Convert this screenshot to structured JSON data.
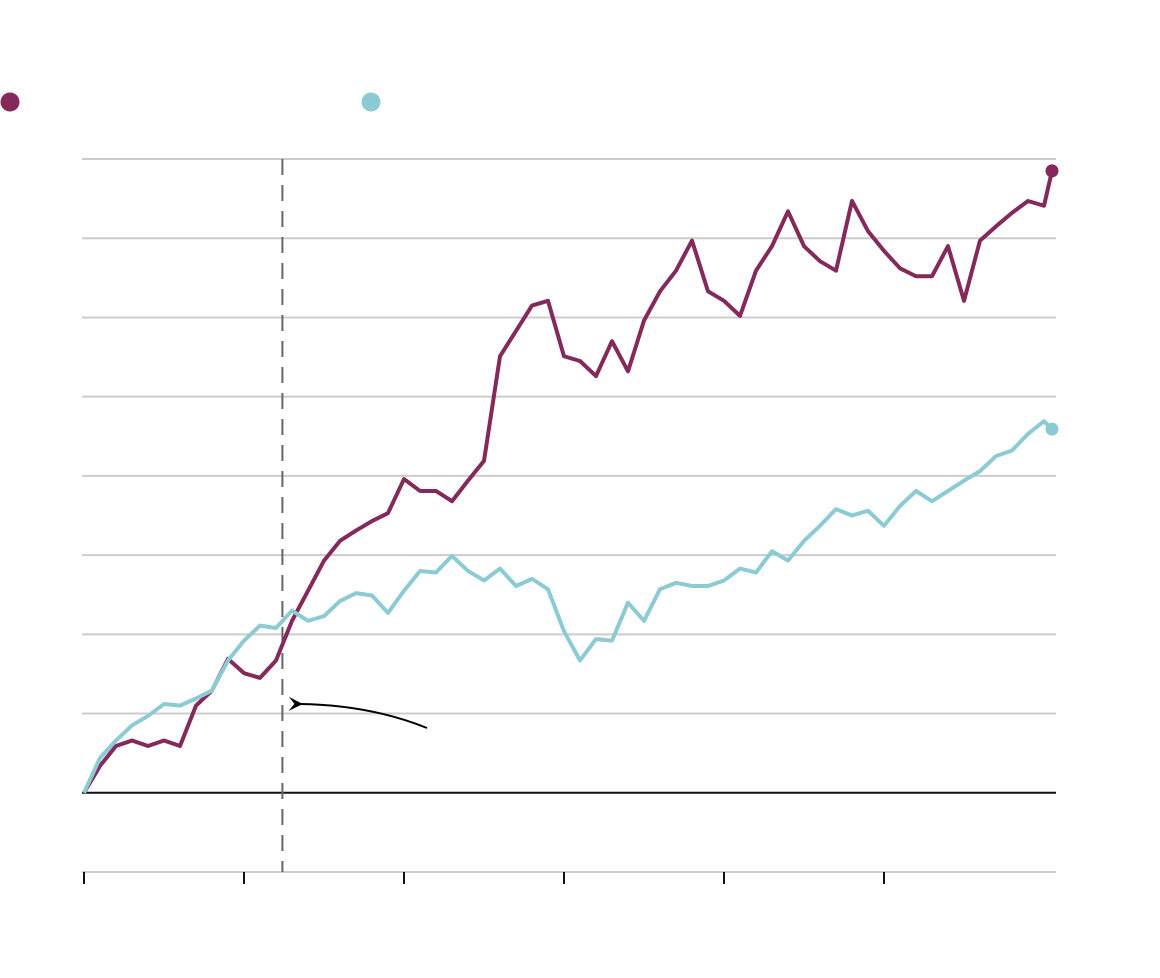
{
  "chart_data": {
    "type": "line",
    "x": [
      0,
      0.1,
      0.2,
      0.3,
      0.4,
      0.5,
      0.6,
      0.7,
      0.8,
      0.9,
      1.0,
      1.1,
      1.2,
      1.3,
      1.4,
      1.5,
      1.6,
      1.7,
      1.8,
      1.9,
      2.0,
      2.1,
      2.2,
      2.3,
      2.4,
      2.5,
      2.6,
      2.7,
      2.8,
      2.9,
      3.0,
      3.1,
      3.2,
      3.3,
      3.4,
      3.5,
      3.6,
      3.7,
      3.8,
      3.9,
      4.0,
      4.1,
      4.2,
      4.3,
      4.4,
      4.5,
      4.6,
      4.7,
      4.8,
      4.9,
      5.0,
      5.1,
      5.2,
      5.3,
      5.4,
      5.5,
      5.6,
      5.7,
      5.8,
      5.9,
      6.0,
      6.05
    ],
    "series": [
      {
        "color": "#84295a",
        "values": [
          0,
          0.34,
          0.59,
          0.66,
          0.59,
          0.66,
          0.59,
          1.1,
          1.29,
          1.69,
          1.51,
          1.45,
          1.67,
          2.17,
          2.55,
          2.93,
          3.18,
          3.31,
          3.43,
          3.53,
          3.96,
          3.81,
          3.81,
          3.68,
          3.94,
          4.19,
          5.51,
          5.83,
          6.15,
          6.21,
          5.51,
          5.45,
          5.26,
          5.7,
          5.32,
          5.96,
          6.33,
          6.59,
          6.97,
          6.33,
          6.21,
          6.02,
          6.59,
          6.9,
          7.34,
          6.9,
          6.71,
          6.59,
          7.47,
          7.09,
          6.84,
          6.62,
          6.52,
          6.52,
          6.9,
          6.21,
          6.97,
          7.15,
          7.32,
          7.47,
          7.41,
          7.85
        ]
      },
      {
        "color": "#8ccbd4",
        "values": [
          0,
          0.44,
          0.66,
          0.85,
          0.97,
          1.12,
          1.1,
          1.19,
          1.29,
          1.67,
          1.92,
          2.11,
          2.08,
          2.3,
          2.17,
          2.23,
          2.42,
          2.52,
          2.49,
          2.27,
          2.55,
          2.8,
          2.78,
          2.99,
          2.8,
          2.68,
          2.83,
          2.61,
          2.7,
          2.57,
          2.04,
          1.67,
          1.94,
          1.92,
          2.4,
          2.17,
          2.57,
          2.65,
          2.61,
          2.61,
          2.68,
          2.83,
          2.78,
          3.05,
          2.93,
          3.18,
          3.37,
          3.58,
          3.5,
          3.56,
          3.37,
          3.62,
          3.81,
          3.68,
          3.81,
          3.94,
          4.06,
          4.25,
          4.32,
          4.53,
          4.69,
          4.59
        ]
      }
    ],
    "xlim": [
      0,
      6.05
    ],
    "xticks": [
      0,
      1,
      2,
      3,
      4,
      5
    ],
    "ylim": [
      -1,
      8
    ],
    "yticks": [
      -1,
      0,
      1,
      2,
      3,
      4,
      5,
      6,
      7,
      8
    ],
    "grid": true,
    "reference_x": 1.24
  }
}
